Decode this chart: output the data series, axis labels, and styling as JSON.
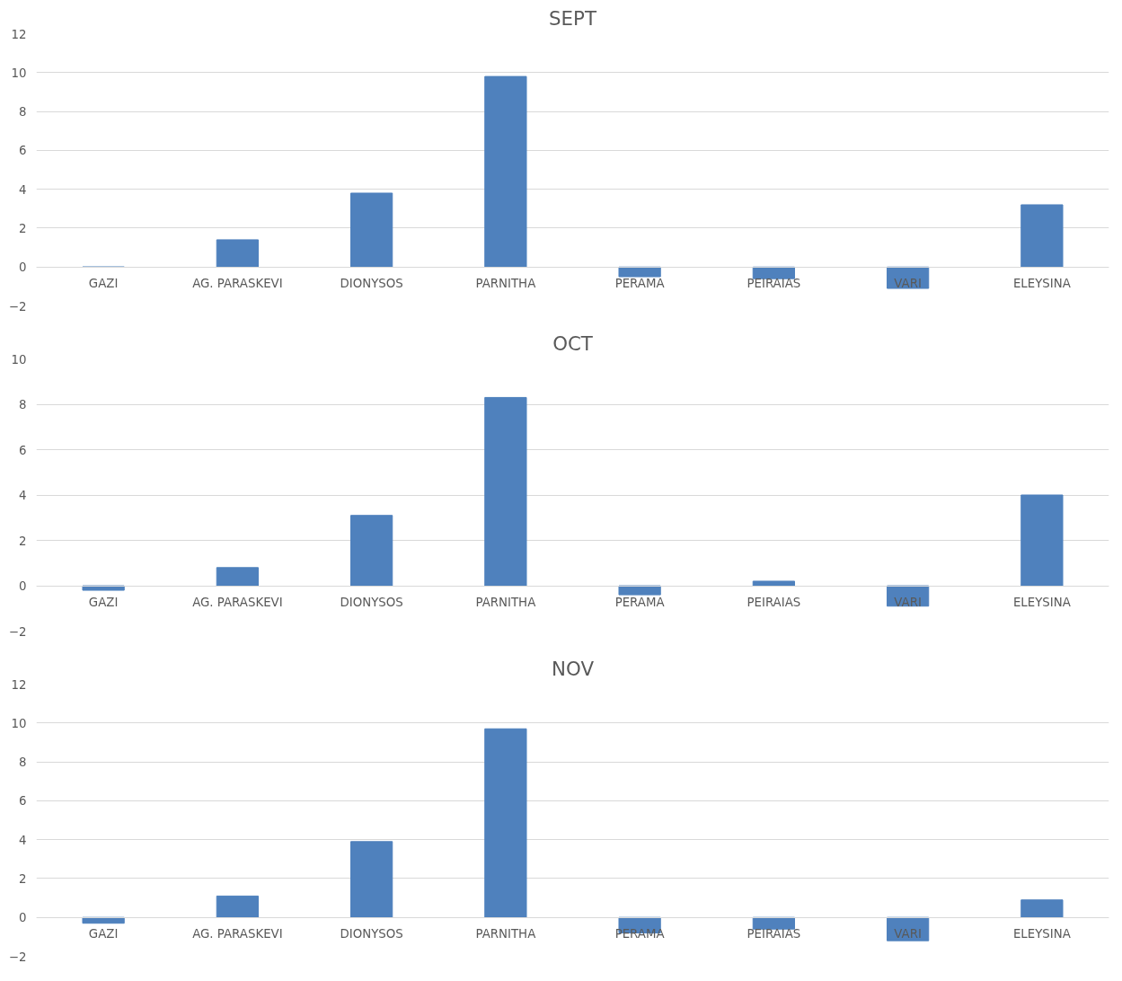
{
  "chart_data": [
    {
      "type": "bar",
      "title": "SEPT",
      "categories": [
        "GAZI",
        "AG. PARASKEVI",
        "DIONYSOS",
        "PARNITHA",
        "PERAMA",
        "PEIRAIAS",
        "VARI",
        "ELEYSINA"
      ],
      "values": [
        0,
        1.4,
        3.8,
        9.8,
        -0.5,
        -0.6,
        -1.1,
        3.2
      ],
      "color": "#4f81bd",
      "ylim": [
        -2,
        12
      ],
      "yticks": [
        -2,
        0,
        2,
        4,
        6,
        8,
        10,
        12
      ],
      "grid": "y"
    },
    {
      "type": "bar",
      "title": "OCT",
      "categories": [
        "GAZI",
        "AG. PARASKEVI",
        "DIONYSOS",
        "PARNITHA",
        "PERAMA",
        "PEIRAIAS",
        "VARI",
        "ELEYSINA"
      ],
      "values": [
        -0.2,
        0.8,
        3.1,
        8.3,
        -0.4,
        0.2,
        -0.9,
        4.0
      ],
      "color": "#4f81bd",
      "ylim": [
        -2,
        10
      ],
      "yticks": [
        -2,
        0,
        2,
        4,
        6,
        8,
        10
      ],
      "grid": "y"
    },
    {
      "type": "bar",
      "title": "NOV",
      "categories": [
        "GAZI",
        "AG. PARASKEVI",
        "DIONYSOS",
        "PARNITHA",
        "PERAMA",
        "PEIRAIAS",
        "VARI",
        "ELEYSINA"
      ],
      "values": [
        -0.3,
        1.1,
        3.9,
        9.7,
        -0.8,
        -0.6,
        -1.2,
        0.9
      ],
      "color": "#4f81bd",
      "ylim": [
        -2,
        12
      ],
      "yticks": [
        -2,
        0,
        2,
        4,
        6,
        8,
        10,
        12
      ],
      "grid": "y"
    }
  ]
}
